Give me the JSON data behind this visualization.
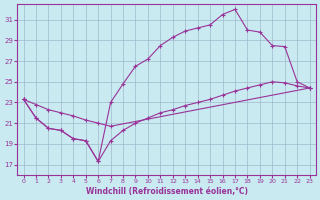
{
  "bg_color": "#c8eaf0",
  "grid_color": "#a0b8cc",
  "line_color": "#993399",
  "xlabel": "Windchill (Refroidissement éolien,°C)",
  "xlim": [
    -0.5,
    23.5
  ],
  "ylim": [
    16,
    32.5
  ],
  "yticks": [
    17,
    19,
    21,
    23,
    25,
    27,
    29,
    31
  ],
  "xticks": [
    0,
    1,
    2,
    3,
    4,
    5,
    6,
    7,
    8,
    9,
    10,
    11,
    12,
    13,
    14,
    15,
    16,
    17,
    18,
    19,
    20,
    21,
    22,
    23
  ],
  "line1_x": [
    0,
    1,
    2,
    3,
    4,
    5,
    6,
    7,
    8,
    9,
    10,
    11,
    12,
    13,
    14,
    15,
    16,
    17,
    18,
    19,
    20,
    21,
    22,
    23
  ],
  "line1_y": [
    23.3,
    21.5,
    20.5,
    20.3,
    19.5,
    19.3,
    17.3,
    19.3,
    20.3,
    21.0,
    21.5,
    22.0,
    22.3,
    22.7,
    23.0,
    23.3,
    23.7,
    24.1,
    24.4,
    24.7,
    25.0,
    24.9,
    24.6,
    24.4
  ],
  "line2_x": [
    0,
    1,
    2,
    3,
    4,
    5,
    6,
    7,
    8,
    9,
    10,
    11,
    12,
    13,
    14,
    15,
    16,
    17,
    18,
    19,
    20,
    21,
    22,
    23
  ],
  "line2_y": [
    23.3,
    21.5,
    20.5,
    20.3,
    19.5,
    19.3,
    17.3,
    23.0,
    24.8,
    26.5,
    27.2,
    28.5,
    29.3,
    29.9,
    30.2,
    30.5,
    31.5,
    32.0,
    30.0,
    29.8,
    28.5,
    28.4,
    25.0,
    24.4
  ],
  "line3_x": [
    0,
    1,
    2,
    3,
    4,
    5,
    6,
    7,
    23
  ],
  "line3_y": [
    23.3,
    22.8,
    22.3,
    22.0,
    21.7,
    21.3,
    21.0,
    20.7,
    24.4
  ]
}
